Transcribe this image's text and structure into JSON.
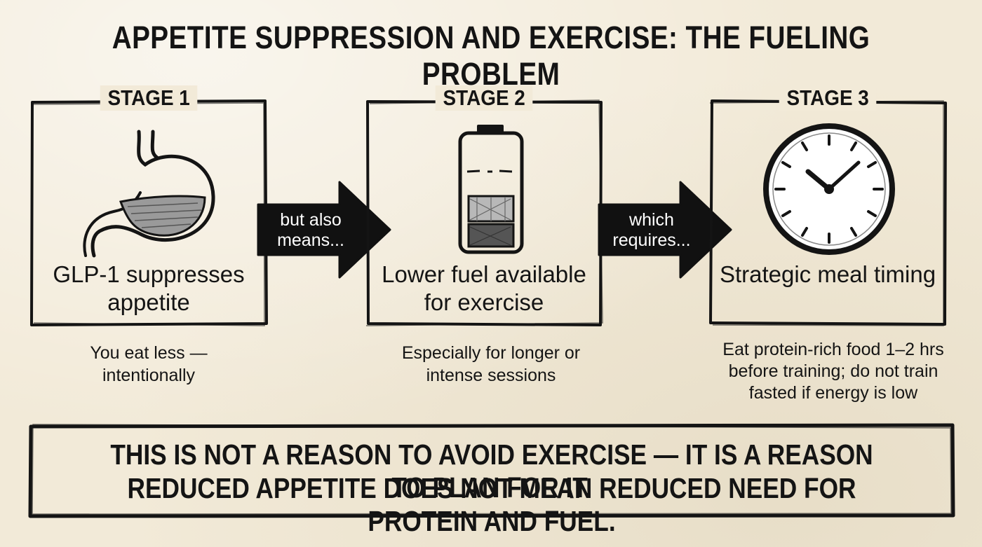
{
  "title": "APPETITE SUPPRESSION AND EXERCISE: THE FUELING PROBLEM",
  "stages": [
    {
      "label": "STAGE 1",
      "icon": "stomach-icon",
      "main": "GLP-1 suppresses appetite",
      "note": "You eat less — intentionally"
    },
    {
      "label": "STAGE 2",
      "icon": "low-battery-icon",
      "main": "Lower fuel available for exercise",
      "note": "Especially for longer or intense sessions"
    },
    {
      "label": "STAGE 3",
      "icon": "clock-icon",
      "main": "Strategic meal timing",
      "note": "Eat protein-rich food 1–2 hrs before training; do not train fasted if energy is low"
    }
  ],
  "connectors": [
    {
      "text": "but also means..."
    },
    {
      "text": "which requires..."
    }
  ],
  "summary": {
    "line1": "THIS IS NOT A REASON TO AVOID EXERCISE — IT IS A REASON TO PLAN FOR IT.",
    "line2": "REDUCED APPETITE DOES NOT MEAN REDUCED NEED FOR PROTEIN AND FUEL."
  },
  "colors": {
    "ink": "#141414",
    "paper": "#f2ead8",
    "hatch": "#8a8a8a"
  }
}
